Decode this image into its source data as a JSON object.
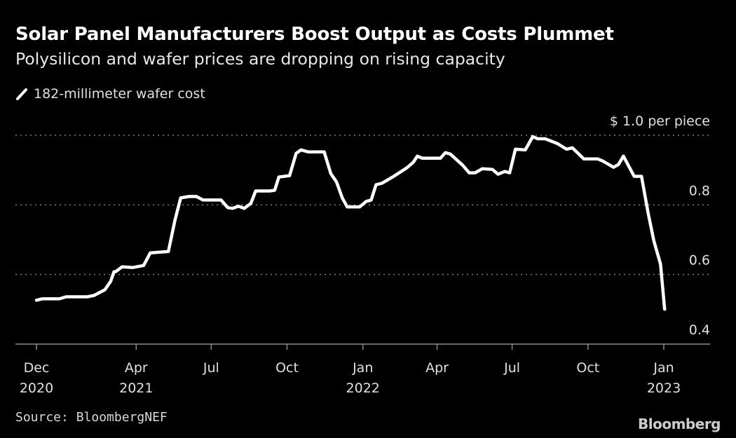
{
  "title": "Solar Panel Manufacturers Boost Output as Costs Plummet",
  "subtitle": "Polysilicon and wafer prices are dropping on rising capacity",
  "source": "Source: BloombergNEF",
  "logo": "Bloomberg",
  "chart_data": {
    "type": "line",
    "title": "Solar Panel Manufacturers Boost Output as Costs Plummet",
    "subtitle": "Polysilicon and wafer prices are dropping on rising capacity",
    "xlabel": "",
    "ylabel": "",
    "y_unit_label": "$ 1.0 per piece",
    "ylim": [
      0.4,
      1.0
    ],
    "xlim": [
      "2020-12-01",
      "2023-01-01"
    ],
    "grid": true,
    "legend_position": "top-left",
    "line_color": "#ffffff",
    "y_ticks": [
      {
        "value": 1.0,
        "label": "$ 1.0 per piece"
      },
      {
        "value": 0.8,
        "label": "0.8"
      },
      {
        "value": 0.6,
        "label": "0.6"
      },
      {
        "value": 0.4,
        "label": "0.4"
      }
    ],
    "x_ticks": [
      {
        "date": "2020-12-01",
        "label": "Dec",
        "year": "2020"
      },
      {
        "date": "2021-04-01",
        "label": "Apr",
        "year": "2021"
      },
      {
        "date": "2021-07-01",
        "label": "Jul",
        "year": ""
      },
      {
        "date": "2021-10-01",
        "label": "Oct",
        "year": ""
      },
      {
        "date": "2022-01-01",
        "label": "Jan",
        "year": "2022"
      },
      {
        "date": "2022-04-01",
        "label": "Apr",
        "year": ""
      },
      {
        "date": "2022-07-01",
        "label": "Jul",
        "year": ""
      },
      {
        "date": "2022-10-01",
        "label": "Oct",
        "year": ""
      },
      {
        "date": "2023-01-01",
        "label": "Jan",
        "year": "2023"
      }
    ],
    "series": [
      {
        "name": "182-millimeter wafer cost",
        "points": [
          [
            "2020-12-01",
            0.526
          ],
          [
            "2020-12-08",
            0.53
          ],
          [
            "2020-12-29",
            0.53
          ],
          [
            "2021-01-06",
            0.536
          ],
          [
            "2021-02-01",
            0.536
          ],
          [
            "2021-02-09",
            0.54
          ],
          [
            "2021-02-22",
            0.556
          ],
          [
            "2021-03-01",
            0.58
          ],
          [
            "2021-03-05",
            0.608
          ],
          [
            "2021-03-07",
            0.608
          ],
          [
            "2021-03-15",
            0.622
          ],
          [
            "2021-03-28",
            0.62
          ],
          [
            "2021-04-10",
            0.626
          ],
          [
            "2021-04-18",
            0.662
          ],
          [
            "2021-05-10",
            0.666
          ],
          [
            "2021-05-18",
            0.756
          ],
          [
            "2021-05-25",
            0.82
          ],
          [
            "2021-06-04",
            0.824
          ],
          [
            "2021-06-13",
            0.824
          ],
          [
            "2021-06-21",
            0.814
          ],
          [
            "2021-07-13",
            0.814
          ],
          [
            "2021-07-21",
            0.792
          ],
          [
            "2021-07-27",
            0.79
          ],
          [
            "2021-08-03",
            0.796
          ],
          [
            "2021-08-10",
            0.79
          ],
          [
            "2021-08-18",
            0.804
          ],
          [
            "2021-08-24",
            0.84
          ],
          [
            "2021-09-10",
            0.84
          ],
          [
            "2021-09-16",
            0.842
          ],
          [
            "2021-09-21",
            0.88
          ],
          [
            "2021-10-04",
            0.884
          ],
          [
            "2021-10-12",
            0.948
          ],
          [
            "2021-10-18",
            0.958
          ],
          [
            "2021-10-27",
            0.952
          ],
          [
            "2021-11-15",
            0.952
          ],
          [
            "2021-11-23",
            0.89
          ],
          [
            "2021-11-30",
            0.866
          ],
          [
            "2021-12-07",
            0.82
          ],
          [
            "2021-12-13",
            0.794
          ],
          [
            "2021-12-28",
            0.794
          ],
          [
            "2022-01-05",
            0.81
          ],
          [
            "2022-01-11",
            0.814
          ],
          [
            "2022-01-17",
            0.858
          ],
          [
            "2022-01-24",
            0.862
          ],
          [
            "2022-02-06",
            0.88
          ],
          [
            "2022-02-23",
            0.906
          ],
          [
            "2022-03-03",
            0.922
          ],
          [
            "2022-03-08",
            0.94
          ],
          [
            "2022-03-14",
            0.934
          ],
          [
            "2022-04-05",
            0.934
          ],
          [
            "2022-04-11",
            0.95
          ],
          [
            "2022-04-17",
            0.946
          ],
          [
            "2022-05-02",
            0.914
          ],
          [
            "2022-05-10",
            0.892
          ],
          [
            "2022-05-17",
            0.892
          ],
          [
            "2022-05-26",
            0.904
          ],
          [
            "2022-06-07",
            0.902
          ],
          [
            "2022-06-14",
            0.888
          ],
          [
            "2022-06-22",
            0.896
          ],
          [
            "2022-06-28",
            0.892
          ],
          [
            "2022-07-05",
            0.96
          ],
          [
            "2022-07-17",
            0.958
          ],
          [
            "2022-07-26",
            0.996
          ],
          [
            "2022-08-01",
            0.99
          ],
          [
            "2022-08-10",
            0.99
          ],
          [
            "2022-08-25",
            0.976
          ],
          [
            "2022-09-05",
            0.96
          ],
          [
            "2022-09-12",
            0.964
          ],
          [
            "2022-09-26",
            0.932
          ],
          [
            "2022-10-13",
            0.932
          ],
          [
            "2022-10-19",
            0.926
          ],
          [
            "2022-11-01",
            0.908
          ],
          [
            "2022-11-07",
            0.916
          ],
          [
            "2022-11-13",
            0.94
          ],
          [
            "2022-11-26",
            0.882
          ],
          [
            "2022-12-05",
            0.882
          ],
          [
            "2022-12-13",
            0.776
          ],
          [
            "2022-12-20",
            0.696
          ],
          [
            "2022-12-28",
            0.63
          ],
          [
            "2023-01-02",
            0.5
          ]
        ]
      }
    ]
  }
}
